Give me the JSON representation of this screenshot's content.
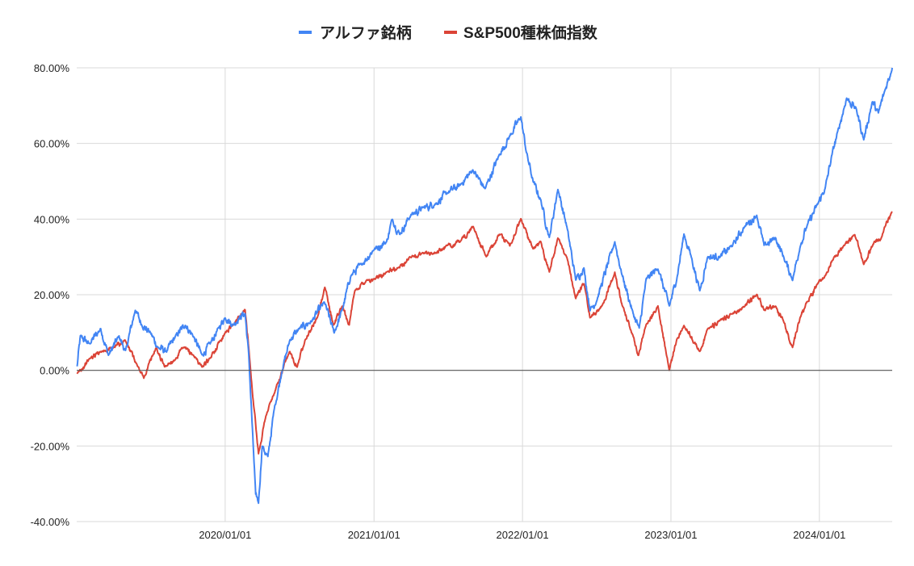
{
  "chart_data": {
    "type": "line",
    "title": "",
    "xlabel": "",
    "ylabel": "",
    "ylim": [
      -40,
      80
    ],
    "y_ticks": [
      80,
      60,
      40,
      20,
      0,
      -20,
      -40
    ],
    "y_tick_labels": [
      "80.00%",
      "60.00%",
      "40.00%",
      "20.00%",
      "0.00%",
      "-20.00%",
      "-40.00%"
    ],
    "x_range": [
      "2019-01-01",
      "2024-06-28"
    ],
    "x_ticks": [
      "2020-01-01",
      "2021-01-01",
      "2022-01-01",
      "2023-01-01",
      "2024-01-01"
    ],
    "x_tick_labels": [
      "2020/01/01",
      "2021/01/01",
      "2022/01/01",
      "2023/01/01",
      "2024/01/01"
    ],
    "grid": true,
    "legend_position": "top-center",
    "series": [
      {
        "name": "アルファ銘柄",
        "color": "#4285f4",
        "points": [
          [
            "2019-01-02",
            1
          ],
          [
            "2019-01-10",
            9
          ],
          [
            "2019-02-01",
            7
          ],
          [
            "2019-03-01",
            11
          ],
          [
            "2019-03-20",
            4
          ],
          [
            "2019-04-15",
            9
          ],
          [
            "2019-05-01",
            5
          ],
          [
            "2019-05-25",
            16
          ],
          [
            "2019-06-10",
            12
          ],
          [
            "2019-07-01",
            10
          ],
          [
            "2019-07-20",
            6
          ],
          [
            "2019-08-10",
            5
          ],
          [
            "2019-09-01",
            9
          ],
          [
            "2019-09-25",
            12
          ],
          [
            "2019-10-15",
            9
          ],
          [
            "2019-11-05",
            4
          ],
          [
            "2019-11-25",
            7
          ],
          [
            "2019-12-15",
            11
          ],
          [
            "2020-01-01",
            14
          ],
          [
            "2020-01-20",
            12
          ],
          [
            "2020-02-05",
            14
          ],
          [
            "2020-02-19",
            15
          ],
          [
            "2020-02-28",
            4
          ],
          [
            "2020-03-10",
            -20
          ],
          [
            "2020-03-16",
            -33
          ],
          [
            "2020-03-23",
            -35
          ],
          [
            "2020-04-01",
            -20
          ],
          [
            "2020-04-15",
            -23
          ],
          [
            "2020-05-01",
            -10
          ],
          [
            "2020-05-20",
            0
          ],
          [
            "2020-06-08",
            8
          ],
          [
            "2020-07-01",
            11
          ],
          [
            "2020-08-01",
            13
          ],
          [
            "2020-09-01",
            18
          ],
          [
            "2020-09-25",
            10
          ],
          [
            "2020-10-15",
            16
          ],
          [
            "2020-11-05",
            25
          ],
          [
            "2020-12-01",
            28
          ],
          [
            "2021-01-01",
            32
          ],
          [
            "2021-02-01",
            34
          ],
          [
            "2021-02-15",
            40
          ],
          [
            "2021-03-05",
            36
          ],
          [
            "2021-04-01",
            41
          ],
          [
            "2021-05-01",
            43
          ],
          [
            "2021-06-01",
            44
          ],
          [
            "2021-07-01",
            47
          ],
          [
            "2021-08-01",
            49
          ],
          [
            "2021-09-01",
            53
          ],
          [
            "2021-10-01",
            48
          ],
          [
            "2021-11-05",
            57
          ],
          [
            "2021-12-01",
            62
          ],
          [
            "2021-12-28",
            67
          ],
          [
            "2022-01-10",
            58
          ],
          [
            "2022-01-27",
            50
          ],
          [
            "2022-02-15",
            45
          ],
          [
            "2022-03-08",
            35
          ],
          [
            "2022-03-29",
            48
          ],
          [
            "2022-04-20",
            38
          ],
          [
            "2022-05-12",
            24
          ],
          [
            "2022-06-01",
            27
          ],
          [
            "2022-06-16",
            16
          ],
          [
            "2022-07-01",
            18
          ],
          [
            "2022-08-16",
            34
          ],
          [
            "2022-09-01",
            26
          ],
          [
            "2022-09-30",
            15
          ],
          [
            "2022-10-15",
            11
          ],
          [
            "2022-11-01",
            24
          ],
          [
            "2022-11-30",
            27
          ],
          [
            "2022-12-28",
            17
          ],
          [
            "2023-01-15",
            24
          ],
          [
            "2023-02-02",
            36
          ],
          [
            "2023-02-20",
            30
          ],
          [
            "2023-03-13",
            21
          ],
          [
            "2023-04-01",
            30
          ],
          [
            "2023-05-01",
            30
          ],
          [
            "2023-06-01",
            33
          ],
          [
            "2023-07-01",
            38
          ],
          [
            "2023-07-31",
            41
          ],
          [
            "2023-08-18",
            33
          ],
          [
            "2023-09-15",
            35
          ],
          [
            "2023-10-05",
            30
          ],
          [
            "2023-10-27",
            24
          ],
          [
            "2023-11-15",
            33
          ],
          [
            "2023-12-01",
            38
          ],
          [
            "2023-12-28",
            44
          ],
          [
            "2024-01-15",
            48
          ],
          [
            "2024-02-01",
            57
          ],
          [
            "2024-02-15",
            63
          ],
          [
            "2024-03-08",
            72
          ],
          [
            "2024-04-01",
            69
          ],
          [
            "2024-04-19",
            61
          ],
          [
            "2024-05-10",
            71
          ],
          [
            "2024-05-25",
            68
          ],
          [
            "2024-06-10",
            74
          ],
          [
            "2024-06-28",
            80
          ]
        ]
      },
      {
        "name": "S&P500種株価指数",
        "color": "#db4437",
        "points": [
          [
            "2019-01-02",
            -1
          ],
          [
            "2019-02-01",
            3
          ],
          [
            "2019-03-01",
            5
          ],
          [
            "2019-04-01",
            6
          ],
          [
            "2019-04-30",
            8
          ],
          [
            "2019-05-31",
            1
          ],
          [
            "2019-06-15",
            -2
          ],
          [
            "2019-07-15",
            6
          ],
          [
            "2019-08-05",
            1
          ],
          [
            "2019-09-01",
            3
          ],
          [
            "2019-09-20",
            6
          ],
          [
            "2019-10-15",
            4
          ],
          [
            "2019-11-05",
            1
          ],
          [
            "2019-11-25",
            3
          ],
          [
            "2019-12-20",
            8
          ],
          [
            "2020-01-01",
            10
          ],
          [
            "2020-01-20",
            12
          ],
          [
            "2020-02-19",
            16
          ],
          [
            "2020-02-28",
            6
          ],
          [
            "2020-03-10",
            -8
          ],
          [
            "2020-03-23",
            -22
          ],
          [
            "2020-04-10",
            -12
          ],
          [
            "2020-05-01",
            -6
          ],
          [
            "2020-06-08",
            5
          ],
          [
            "2020-06-26",
            1
          ],
          [
            "2020-07-15",
            8
          ],
          [
            "2020-08-15",
            14
          ],
          [
            "2020-09-02",
            22
          ],
          [
            "2020-09-23",
            12
          ],
          [
            "2020-10-15",
            17
          ],
          [
            "2020-11-01",
            12
          ],
          [
            "2020-11-15",
            21
          ],
          [
            "2020-12-15",
            24
          ],
          [
            "2021-01-01",
            24
          ],
          [
            "2021-02-01",
            26
          ],
          [
            "2021-03-01",
            27
          ],
          [
            "2021-04-01",
            30
          ],
          [
            "2021-05-01",
            31
          ],
          [
            "2021-06-01",
            31
          ],
          [
            "2021-07-01",
            33
          ],
          [
            "2021-08-01",
            34
          ],
          [
            "2021-09-02",
            38
          ],
          [
            "2021-10-04",
            30
          ],
          [
            "2021-11-05",
            36
          ],
          [
            "2021-12-01",
            33
          ],
          [
            "2021-12-28",
            40
          ],
          [
            "2022-01-27",
            32
          ],
          [
            "2022-02-15",
            34
          ],
          [
            "2022-03-08",
            26
          ],
          [
            "2022-03-29",
            35
          ],
          [
            "2022-04-20",
            30
          ],
          [
            "2022-05-12",
            19
          ],
          [
            "2022-06-01",
            23
          ],
          [
            "2022-06-16",
            14
          ],
          [
            "2022-07-15",
            17
          ],
          [
            "2022-08-16",
            26
          ],
          [
            "2022-09-01",
            18
          ],
          [
            "2022-09-30",
            9
          ],
          [
            "2022-10-13",
            4
          ],
          [
            "2022-11-01",
            12
          ],
          [
            "2022-11-30",
            17
          ],
          [
            "2022-12-28",
            0
          ],
          [
            "2023-01-15",
            8
          ],
          [
            "2023-02-02",
            12
          ],
          [
            "2023-03-13",
            5
          ],
          [
            "2023-04-01",
            11
          ],
          [
            "2023-05-01",
            13
          ],
          [
            "2023-06-01",
            15
          ],
          [
            "2023-07-01",
            17
          ],
          [
            "2023-07-31",
            20
          ],
          [
            "2023-08-18",
            16
          ],
          [
            "2023-09-15",
            17
          ],
          [
            "2023-10-05",
            13
          ],
          [
            "2023-10-27",
            6
          ],
          [
            "2023-11-15",
            14
          ],
          [
            "2023-12-01",
            18
          ],
          [
            "2023-12-28",
            23
          ],
          [
            "2024-01-15",
            25
          ],
          [
            "2024-02-01",
            29
          ],
          [
            "2024-03-01",
            33
          ],
          [
            "2024-03-28",
            36
          ],
          [
            "2024-04-19",
            28
          ],
          [
            "2024-05-15",
            34
          ],
          [
            "2024-06-01",
            35
          ],
          [
            "2024-06-28",
            42
          ]
        ]
      }
    ]
  }
}
